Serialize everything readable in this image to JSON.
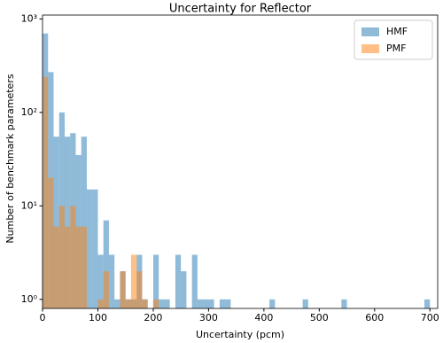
{
  "chart_data": {
    "type": "histogram",
    "title": "Uncertainty for Reflector",
    "xlabel": "Uncertainty (pcm)",
    "ylabel": "Number of benchmark parameters",
    "bins": [
      0,
      10,
      20,
      30,
      40,
      50,
      60,
      70,
      80,
      90,
      100,
      110,
      120,
      130,
      140,
      150,
      160,
      170,
      180,
      190,
      200,
      210,
      220,
      230,
      240,
      250,
      260,
      270,
      280,
      290,
      300,
      310,
      320,
      330,
      340,
      350,
      360,
      370,
      380,
      390,
      400,
      410,
      420,
      430,
      440,
      450,
      460,
      470,
      480,
      490,
      500,
      510,
      520,
      530,
      540,
      550,
      560,
      570,
      580,
      590,
      600,
      610,
      620,
      630,
      640,
      650,
      660,
      670,
      680,
      690,
      700
    ],
    "series": [
      {
        "name": "HMF",
        "color": "#1f77b4",
        "opacity": 0.5,
        "values": [
          700,
          270,
          55,
          100,
          55,
          60,
          35,
          55,
          15,
          15,
          3,
          7,
          3,
          1,
          2,
          1,
          1,
          3,
          1,
          0,
          3,
          1,
          1,
          0,
          3,
          2,
          0,
          3,
          1,
          1,
          1,
          0,
          1,
          1,
          0,
          0,
          0,
          0,
          0,
          0,
          0,
          1,
          0,
          0,
          0,
          0,
          0,
          1,
          0,
          0,
          0,
          0,
          0,
          0,
          1,
          0,
          0,
          0,
          0,
          0,
          0,
          0,
          0,
          0,
          0,
          0,
          0,
          0,
          0,
          1
        ]
      },
      {
        "name": "PMF",
        "color": "#ff7f0e",
        "opacity": 0.5,
        "values": [
          240,
          20,
          6,
          10,
          6,
          10,
          6,
          6,
          0,
          0,
          1,
          2,
          0,
          0,
          2,
          1,
          3,
          2,
          1,
          0,
          1,
          0,
          0,
          0,
          0,
          0,
          0,
          0,
          0,
          0,
          0,
          0,
          0,
          0,
          0,
          0,
          0,
          0,
          0,
          0,
          0,
          0,
          0,
          0,
          0,
          0,
          0,
          0,
          0,
          0,
          0,
          0,
          0,
          0,
          0,
          0,
          0,
          0,
          0,
          0,
          0,
          0,
          0,
          0,
          0,
          0,
          0,
          0,
          0,
          0
        ]
      }
    ],
    "xlim": [
      0,
      714
    ],
    "xticks": [
      0,
      100,
      200,
      300,
      400,
      500,
      600,
      700
    ],
    "ylim": [
      0.8,
      1100
    ],
    "yscale": "log",
    "yticks": [
      {
        "value": 1,
        "label": "10⁰"
      },
      {
        "value": 10,
        "label": "10¹"
      },
      {
        "value": 100,
        "label": "10²"
      },
      {
        "value": 1000,
        "label": "10³"
      }
    ],
    "legend": "upper right"
  }
}
